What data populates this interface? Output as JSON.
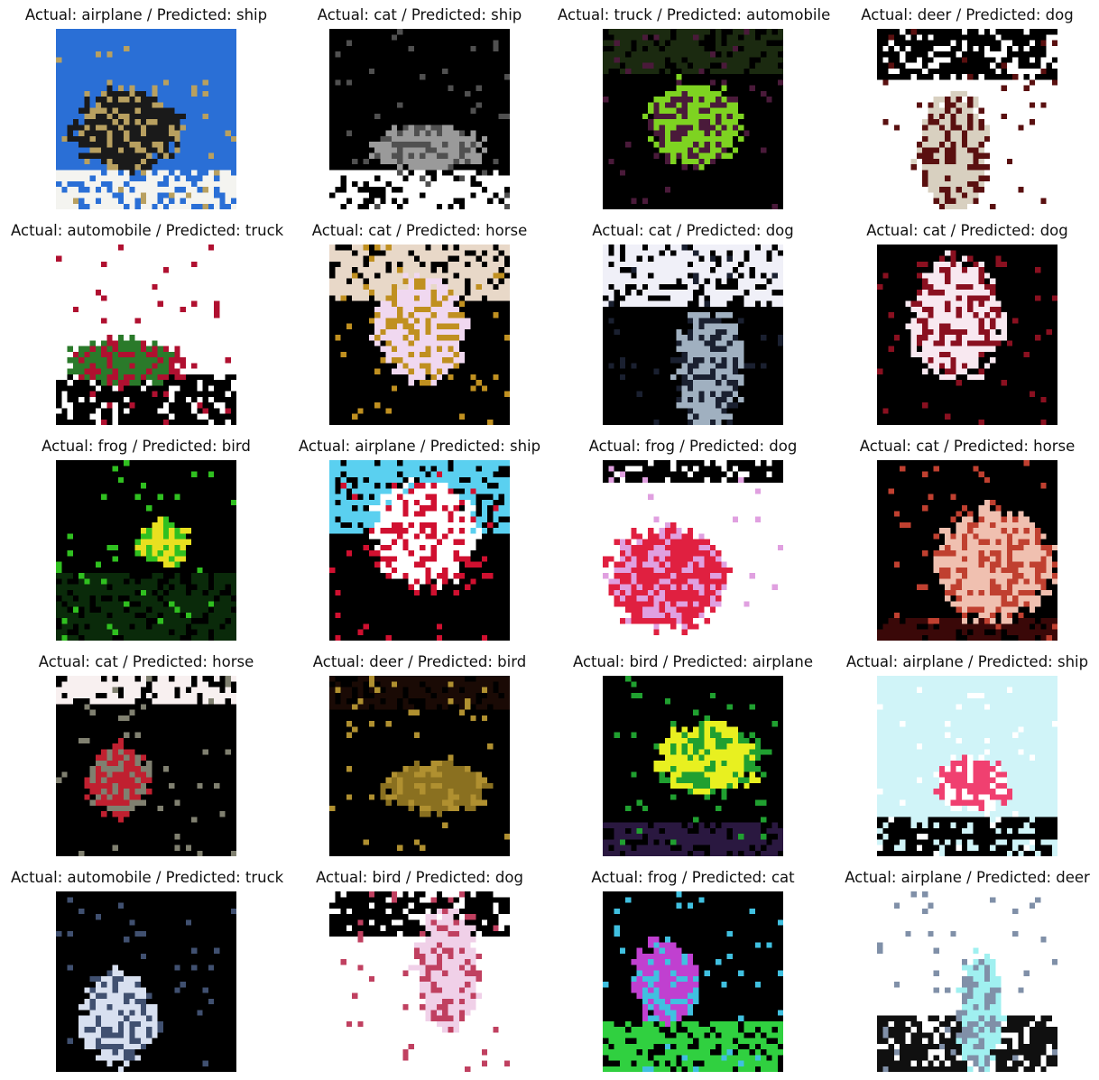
{
  "figure": {
    "panels": [
      {
        "title": "Actual: airplane / Predicted: ship",
        "actual": "airplane",
        "predicted": "ship",
        "palette": [
          "#2a6fd6",
          "#f4f4f0",
          "#1a1a1a",
          "#b8a060"
        ]
      },
      {
        "title": "Actual: cat / Predicted: ship",
        "actual": "cat",
        "predicted": "ship",
        "palette": [
          "#000000",
          "#ffffff",
          "#9a9a9a",
          "#505050"
        ]
      },
      {
        "title": "Actual: truck / Predicted: automobile",
        "actual": "truck",
        "predicted": "automobile",
        "palette": [
          "#000000",
          "#1b2a10",
          "#7ed321",
          "#4a1a3a"
        ]
      },
      {
        "title": "Actual: deer / Predicted: dog",
        "actual": "deer",
        "predicted": "dog",
        "palette": [
          "#ffffff",
          "#000000",
          "#d8d0c0",
          "#5a1010"
        ]
      },
      {
        "title": "Actual: automobile / Predicted: truck",
        "actual": "automobile",
        "predicted": "truck",
        "palette": [
          "#ffffff",
          "#000000",
          "#2a7a2a",
          "#b01030"
        ]
      },
      {
        "title": "Actual: cat / Predicted: horse",
        "actual": "cat",
        "predicted": "horse",
        "palette": [
          "#000000",
          "#e8d8c8",
          "#f0d8f0",
          "#c09020"
        ]
      },
      {
        "title": "Actual: cat / Predicted: dog",
        "actual": "cat",
        "predicted": "dog",
        "palette": [
          "#000000",
          "#f0f0f8",
          "#a0b0c0",
          "#1a2030"
        ]
      },
      {
        "title": "Actual: cat / Predicted: dog",
        "actual": "cat",
        "predicted": "dog",
        "palette": [
          "#000000",
          "#000000",
          "#f8e8f0",
          "#8a1020"
        ]
      },
      {
        "title": "Actual: frog / Predicted: bird",
        "actual": "frog",
        "predicted": "bird",
        "palette": [
          "#000000",
          "#0a2a0a",
          "#e8e020",
          "#30c020"
        ]
      },
      {
        "title": "Actual: airplane / Predicted: ship",
        "actual": "airplane",
        "predicted": "ship",
        "palette": [
          "#000000",
          "#5ad0f0",
          "#ffffff",
          "#d01030"
        ]
      },
      {
        "title": "Actual: frog / Predicted: dog",
        "actual": "frog",
        "predicted": "dog",
        "palette": [
          "#ffffff",
          "#000000",
          "#e02040",
          "#e0a0e0"
        ]
      },
      {
        "title": "Actual: cat / Predicted: horse",
        "actual": "cat",
        "predicted": "horse",
        "palette": [
          "#000000",
          "#3a0808",
          "#f0c0b0",
          "#c04030"
        ]
      },
      {
        "title": "Actual: cat / Predicted: horse",
        "actual": "cat",
        "predicted": "horse",
        "palette": [
          "#000000",
          "#f8f0f0",
          "#c02030",
          "#808070"
        ]
      },
      {
        "title": "Actual: deer / Predicted: bird",
        "actual": "deer",
        "predicted": "bird",
        "palette": [
          "#000000",
          "#1a0a05",
          "#8a7020",
          "#b09030"
        ]
      },
      {
        "title": "Actual: bird / Predicted: airplane",
        "actual": "bird",
        "predicted": "airplane",
        "palette": [
          "#000000",
          "#2a1840",
          "#e8f020",
          "#20a030"
        ]
      },
      {
        "title": "Actual: airplane / Predicted: ship",
        "actual": "airplane",
        "predicted": "ship",
        "palette": [
          "#d0f4f8",
          "#000000",
          "#f04070",
          "#ffffff"
        ]
      },
      {
        "title": "Actual: automobile / Predicted: truck",
        "actual": "automobile",
        "predicted": "truck",
        "palette": [
          "#000000",
          "#000000",
          "#d8e0f0",
          "#405070"
        ]
      },
      {
        "title": "Actual: bird / Predicted: dog",
        "actual": "bird",
        "predicted": "dog",
        "palette": [
          "#ffffff",
          "#000000",
          "#f0d0e8",
          "#c04060"
        ]
      },
      {
        "title": "Actual: frog / Predicted: cat",
        "actual": "frog",
        "predicted": "cat",
        "palette": [
          "#000000",
          "#30d040",
          "#c040d0",
          "#40c0e0"
        ]
      },
      {
        "title": "Actual: airplane / Predicted: deer",
        "actual": "airplane",
        "predicted": "deer",
        "palette": [
          "#ffffff",
          "#101010",
          "#a0f0f0",
          "#8090a8"
        ]
      }
    ]
  }
}
